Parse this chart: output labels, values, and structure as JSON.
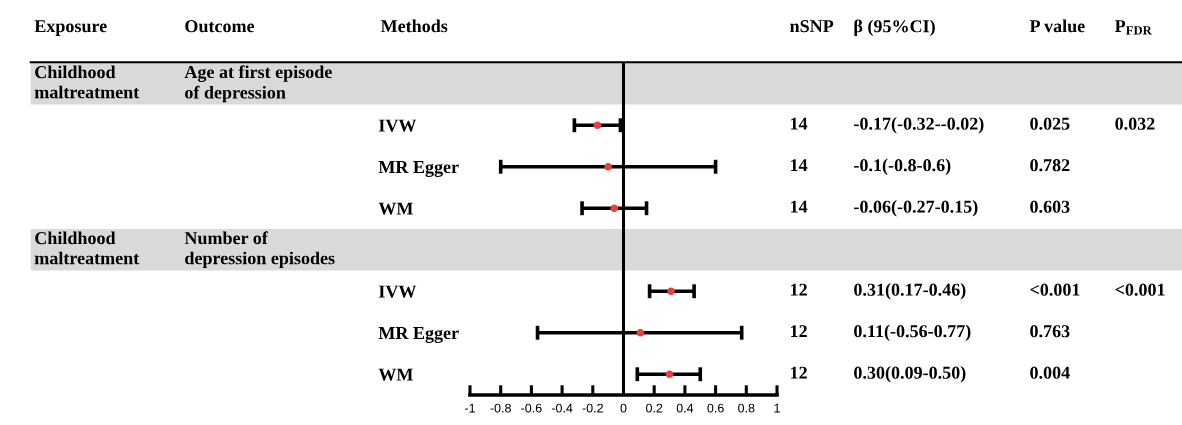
{
  "chart_data": {
    "type": "scatter",
    "orientation": "horizontal",
    "categories": [
      null,
      "IVW",
      "MR Egger",
      "WM",
      null,
      "IVW",
      "MR Egger",
      "WM"
    ],
    "series": [
      {
        "color": "#e8413c",
        "values": [
          null,
          -0.17,
          -0.1,
          -0.06,
          null,
          0.31,
          0.11,
          0.3
        ],
        "errors": [
          null,
          [
            -0.32,
            -0.02
          ],
          [
            -0.8,
            0.6
          ],
          [
            -0.27,
            0.15
          ],
          null,
          [
            0.17,
            0.46
          ],
          [
            -0.56,
            0.77
          ],
          [
            0.09,
            0.5
          ]
        ]
      }
    ],
    "marker": "circle",
    "xlim": [
      -1,
      1
    ],
    "xticks": [
      -1,
      -0.8,
      -0.6,
      -0.4,
      -0.2,
      0,
      0.2,
      0.4,
      0.6,
      0.8,
      1
    ],
    "ref_lines": [
      {
        "axis": "x",
        "value": 0,
        "color": "#000000"
      }
    ],
    "annotations": [
      "Exposure",
      "Outcome",
      "Methods",
      "nSNP",
      "β (95%CI)",
      "P value",
      "P$_{FDR}$",
      "Childhood\nmaltreatment",
      "Age at first episode\nof depression",
      "Childhood\nmaltreatment",
      "Number of\ndepression episodes",
      "14",
      "14",
      "14",
      "12",
      "12",
      "12",
      "-0.17(-0.32--0.02)",
      "-0.1(-0.8-0.6)",
      "-0.06(-0.27-0.15)",
      "0.31(0.17-0.46)",
      "0.11(-0.56-0.77)",
      "0.30(0.09-0.50)",
      "0.025",
      "0.782",
      "0.603",
      "<0.001",
      "0.763",
      "0.004",
      "0.032",
      "<0.001"
    ]
  }
}
